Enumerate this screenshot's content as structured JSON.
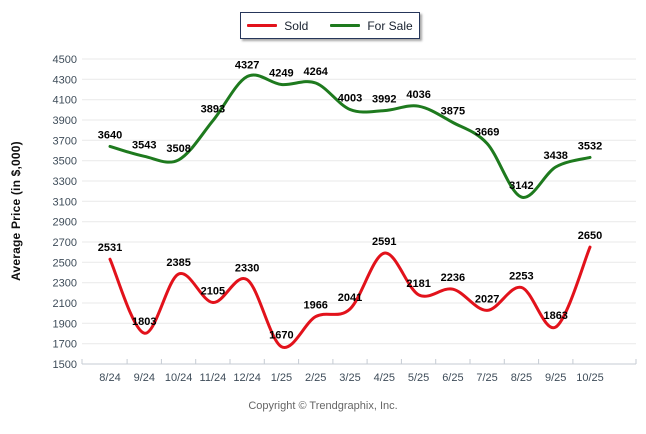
{
  "chart_data": {
    "type": "line",
    "title": "",
    "categories": [
      "8/24",
      "9/24",
      "10/24",
      "11/24",
      "12/24",
      "1/25",
      "2/25",
      "3/25",
      "4/25",
      "5/25",
      "6/25",
      "7/25",
      "8/25",
      "9/25",
      "10/25"
    ],
    "series": [
      {
        "name": "Sold",
        "color": "#e2121b",
        "values": [
          2531,
          1803,
          2385,
          2105,
          2330,
          1670,
          1966,
          2041,
          2591,
          2181,
          2236,
          2027,
          2253,
          1863,
          2650
        ]
      },
      {
        "name": "For Sale",
        "color": "#1e7a1e",
        "values": [
          3640,
          3543,
          3508,
          3893,
          4327,
          4249,
          4264,
          4003,
          3992,
          4036,
          3875,
          3669,
          3142,
          3438,
          3532
        ]
      }
    ],
    "xlabel": "",
    "ylabel": "Average Price (in $,000)",
    "ylim": [
      1500,
      4500
    ],
    "ytick_step": 200,
    "grid": "horizontal-only",
    "legend_position": "top-center",
    "data_labels": true
  },
  "footer": {
    "copyright": "Copyright © Trendgraphix, Inc."
  },
  "colors": {
    "sold_line": "#e2121b",
    "for_sale_line": "#1e7a1e",
    "gridline": "#e9e9e9",
    "axis_line": "#c5cbd3",
    "tick_label": "#3e4c59",
    "data_label": "#000000",
    "legend_border": "#26365a"
  }
}
